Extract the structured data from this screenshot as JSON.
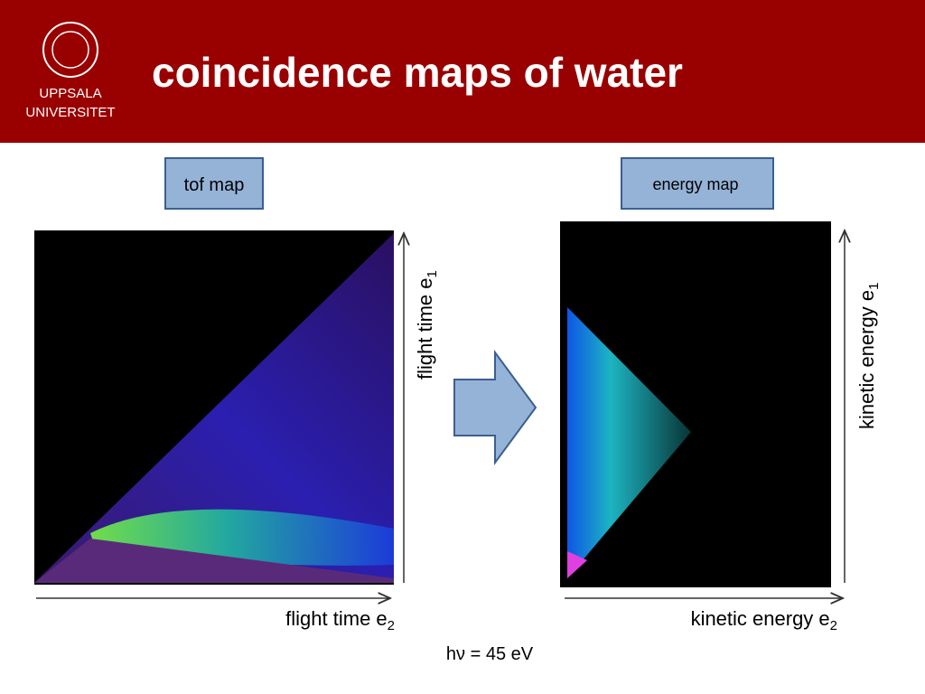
{
  "header": {
    "title": "coincidence maps of water",
    "logo_line1": "UPPSALA",
    "logo_line2": "UNIVERSITET"
  },
  "left_panel": {
    "label": "tof map",
    "y_axis": {
      "text": "flight time e",
      "sub": "1"
    },
    "x_axis": {
      "text": "flight time e",
      "sub": "2"
    }
  },
  "right_panel": {
    "label": "energy map",
    "y_axis": {
      "text": "kinetic energy e",
      "sub": "1"
    },
    "x_axis": {
      "text": "kinetic energy e",
      "sub": "2"
    }
  },
  "footnote": "hν = 45 eV"
}
